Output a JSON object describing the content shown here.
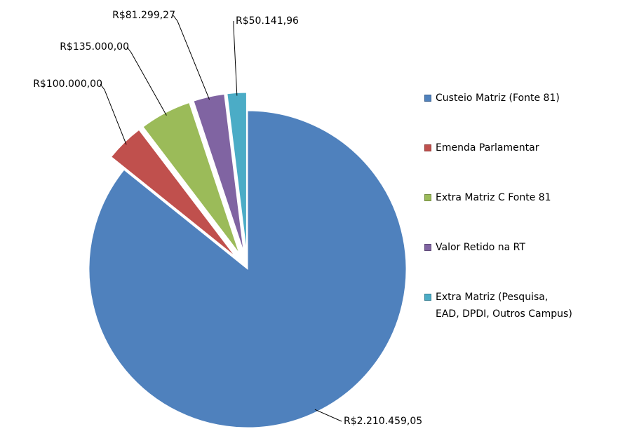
{
  "chart_data": {
    "type": "pie",
    "categories": [
      "Custeio Matriz (Fonte 81)",
      "Emenda Parlamentar",
      "Extra Matriz C Fonte 81",
      "Valor Retido na RT",
      "Extra Matriz (Pesquisa, EAD, DPDI, Outros Campus)"
    ],
    "values": [
      2210459.05,
      100000,
      135000,
      81299.27,
      50141.96
    ],
    "value_labels": [
      "R$2.210.459,05",
      "R$100.000,00",
      "R$135.000,00",
      "R$81.299,27",
      "R$50.141,96"
    ],
    "colors": [
      "#4f81bd",
      "#c0504d",
      "#9bbb59",
      "#8064a2",
      "#4bacc6"
    ],
    "legend": "right"
  }
}
